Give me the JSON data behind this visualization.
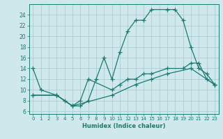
{
  "xlabel": "Humidex (Indice chaleur)",
  "bg_color": "#cfe8ec",
  "line_color": "#1a7a6e",
  "grid_color": "#aacdd4",
  "xlim": [
    -0.5,
    23.5
  ],
  "ylim": [
    5.5,
    26
  ],
  "xticks": [
    0,
    1,
    2,
    3,
    4,
    5,
    6,
    7,
    8,
    9,
    10,
    11,
    12,
    13,
    14,
    15,
    16,
    17,
    18,
    19,
    20,
    21,
    22,
    23
  ],
  "yticks": [
    6,
    8,
    10,
    12,
    14,
    16,
    18,
    20,
    22,
    24
  ],
  "line1_x": [
    0,
    1,
    3,
    4,
    5,
    6,
    7,
    8,
    9,
    10,
    11,
    12,
    13,
    14,
    15,
    17,
    18,
    19,
    20,
    21,
    22,
    23
  ],
  "line1_y": [
    14,
    10,
    9,
    8,
    7,
    7,
    8,
    12,
    16,
    12,
    17,
    21,
    23,
    23,
    25,
    25,
    25,
    23,
    18,
    14,
    13,
    11
  ],
  "line2_x": [
    0,
    3,
    5,
    6,
    7,
    10,
    11,
    12,
    13,
    14,
    15,
    17,
    19,
    20,
    21,
    22,
    23
  ],
  "line2_y": [
    9,
    9,
    7,
    8,
    12,
    10,
    11,
    12,
    12,
    13,
    13,
    14,
    14,
    15,
    15,
    12,
    11
  ],
  "line3_x": [
    0,
    3,
    5,
    10,
    13,
    15,
    17,
    20,
    23
  ],
  "line3_y": [
    9,
    9,
    7,
    9,
    11,
    12,
    13,
    14,
    11
  ]
}
